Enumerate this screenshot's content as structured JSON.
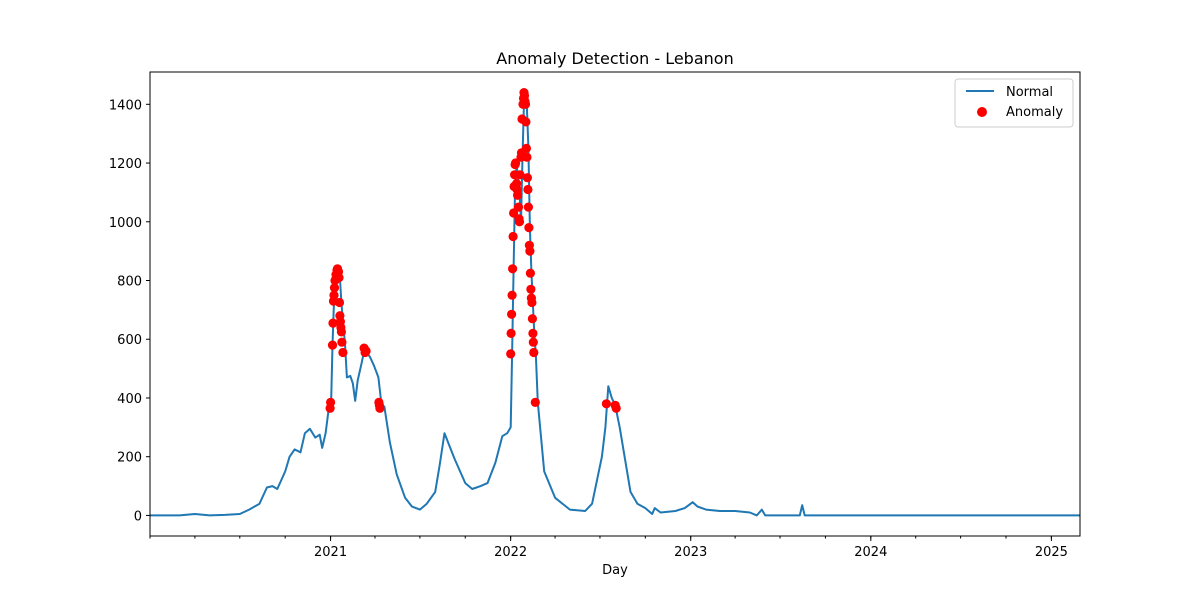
{
  "chart_data": {
    "type": "line",
    "title": "Anomaly Detection - Lebanon",
    "xlabel": "Day",
    "ylabel": "",
    "xlim": [
      "2020-01-01",
      "2025-02-28"
    ],
    "ylim": [
      -70,
      1510
    ],
    "x_ticks": [
      "2021",
      "2022",
      "2023",
      "2024",
      "2025"
    ],
    "y_ticks": [
      0,
      200,
      400,
      600,
      800,
      1000,
      1200,
      1400
    ],
    "legend": {
      "placement": "top-right",
      "entries": [
        "Normal",
        "Anomaly"
      ]
    },
    "grid": false,
    "colors": {
      "normal": "#1f77b4",
      "anomaly": "#ff0000"
    },
    "series": [
      {
        "name": "Normal",
        "type": "line",
        "points": [
          [
            "2020-01-01",
            0
          ],
          [
            "2020-03-01",
            0
          ],
          [
            "2020-04-01",
            5
          ],
          [
            "2020-05-01",
            0
          ],
          [
            "2020-06-01",
            2
          ],
          [
            "2020-07-01",
            5
          ],
          [
            "2020-07-20",
            20
          ],
          [
            "2020-08-10",
            40
          ],
          [
            "2020-08-25",
            95
          ],
          [
            "2020-09-05",
            100
          ],
          [
            "2020-09-15",
            90
          ],
          [
            "2020-10-01",
            150
          ],
          [
            "2020-10-10",
            200
          ],
          [
            "2020-10-20",
            225
          ],
          [
            "2020-11-01",
            215
          ],
          [
            "2020-11-10",
            280
          ],
          [
            "2020-11-20",
            295
          ],
          [
            "2020-12-01",
            265
          ],
          [
            "2020-12-10",
            275
          ],
          [
            "2020-12-15",
            230
          ],
          [
            "2020-12-22",
            280
          ],
          [
            "2020-12-28",
            360
          ],
          [
            "2021-01-02",
            380
          ],
          [
            "2021-01-05",
            580
          ],
          [
            "2021-01-08",
            730
          ],
          [
            "2021-01-12",
            790
          ],
          [
            "2021-01-16",
            835
          ],
          [
            "2021-01-20",
            810
          ],
          [
            "2021-01-23",
            725
          ],
          [
            "2021-01-26",
            660
          ],
          [
            "2021-01-30",
            590
          ],
          [
            "2021-02-03",
            470
          ],
          [
            "2021-02-10",
            475
          ],
          [
            "2021-02-15",
            450
          ],
          [
            "2021-02-20",
            390
          ],
          [
            "2021-02-25",
            460
          ],
          [
            "2021-03-05",
            520
          ],
          [
            "2021-03-10",
            560
          ],
          [
            "2021-03-15",
            555
          ],
          [
            "2021-03-22",
            540
          ],
          [
            "2021-03-30",
            510
          ],
          [
            "2021-04-08",
            470
          ],
          [
            "2021-04-14",
            380
          ],
          [
            "2021-04-20",
            370
          ],
          [
            "2021-05-01",
            250
          ],
          [
            "2021-05-15",
            140
          ],
          [
            "2021-06-01",
            60
          ],
          [
            "2021-06-15",
            30
          ],
          [
            "2021-07-01",
            20
          ],
          [
            "2021-07-15",
            40
          ],
          [
            "2021-08-01",
            80
          ],
          [
            "2021-08-10",
            170
          ],
          [
            "2021-08-20",
            280
          ],
          [
            "2021-08-28",
            245
          ],
          [
            "2021-09-10",
            190
          ],
          [
            "2021-10-01",
            110
          ],
          [
            "2021-10-15",
            90
          ],
          [
            "2021-11-01",
            100
          ],
          [
            "2021-11-15",
            110
          ],
          [
            "2021-12-01",
            180
          ],
          [
            "2021-12-15",
            270
          ],
          [
            "2021-12-25",
            280
          ],
          [
            "2022-01-01",
            300
          ],
          [
            "2022-01-04",
            550
          ],
          [
            "2022-01-07",
            840
          ],
          [
            "2022-01-10",
            1120
          ],
          [
            "2022-01-13",
            1195
          ],
          [
            "2022-01-16",
            1150
          ],
          [
            "2022-01-19",
            1100
          ],
          [
            "2022-01-22",
            1000
          ],
          [
            "2022-01-25",
            1220
          ],
          [
            "2022-01-28",
            1410
          ],
          [
            "2022-01-31",
            1435
          ],
          [
            "2022-02-03",
            1390
          ],
          [
            "2022-02-06",
            1250
          ],
          [
            "2022-02-09",
            980
          ],
          [
            "2022-02-12",
            830
          ],
          [
            "2022-02-15",
            720
          ],
          [
            "2022-02-18",
            620
          ],
          [
            "2022-02-21",
            550
          ],
          [
            "2022-02-25",
            385
          ],
          [
            "2022-03-10",
            150
          ],
          [
            "2022-04-01",
            60
          ],
          [
            "2022-05-01",
            20
          ],
          [
            "2022-06-01",
            15
          ],
          [
            "2022-06-15",
            40
          ],
          [
            "2022-06-25",
            120
          ],
          [
            "2022-07-05",
            200
          ],
          [
            "2022-07-12",
            300
          ],
          [
            "2022-07-18",
            440
          ],
          [
            "2022-07-25",
            400
          ],
          [
            "2022-08-01",
            375
          ],
          [
            "2022-08-10",
            300
          ],
          [
            "2022-08-20",
            200
          ],
          [
            "2022-09-01",
            80
          ],
          [
            "2022-09-15",
            40
          ],
          [
            "2022-10-01",
            25
          ],
          [
            "2022-10-15",
            5
          ],
          [
            "2022-10-20",
            25
          ],
          [
            "2022-11-01",
            10
          ],
          [
            "2022-12-01",
            15
          ],
          [
            "2022-12-20",
            25
          ],
          [
            "2023-01-05",
            45
          ],
          [
            "2023-01-15",
            30
          ],
          [
            "2023-02-01",
            20
          ],
          [
            "2023-03-01",
            15
          ],
          [
            "2023-04-01",
            15
          ],
          [
            "2023-05-01",
            10
          ],
          [
            "2023-05-15",
            0
          ],
          [
            "2023-05-25",
            20
          ],
          [
            "2023-06-01",
            0
          ],
          [
            "2023-08-10",
            0
          ],
          [
            "2023-08-15",
            35
          ],
          [
            "2023-08-20",
            0
          ],
          [
            "2025-02-28",
            0
          ]
        ]
      },
      {
        "name": "Anomaly",
        "type": "scatter",
        "points": [
          [
            "2020-12-31",
            365
          ],
          [
            "2021-01-01",
            385
          ],
          [
            "2021-01-05",
            580
          ],
          [
            "2021-01-06",
            655
          ],
          [
            "2021-01-07",
            730
          ],
          [
            "2021-01-08",
            750
          ],
          [
            "2021-01-09",
            775
          ],
          [
            "2021-01-10",
            800
          ],
          [
            "2021-01-12",
            820
          ],
          [
            "2021-01-14",
            835
          ],
          [
            "2021-01-15",
            840
          ],
          [
            "2021-01-17",
            830
          ],
          [
            "2021-01-18",
            810
          ],
          [
            "2021-01-19",
            725
          ],
          [
            "2021-01-20",
            680
          ],
          [
            "2021-01-21",
            660
          ],
          [
            "2021-01-22",
            640
          ],
          [
            "2021-01-23",
            625
          ],
          [
            "2021-01-24",
            590
          ],
          [
            "2021-01-26",
            555
          ],
          [
            "2021-03-10",
            570
          ],
          [
            "2021-03-12",
            555
          ],
          [
            "2021-03-14",
            560
          ],
          [
            "2021-04-09",
            385
          ],
          [
            "2021-04-10",
            375
          ],
          [
            "2021-04-11",
            365
          ],
          [
            "2022-01-01",
            550
          ],
          [
            "2022-01-02",
            620
          ],
          [
            "2022-01-03",
            685
          ],
          [
            "2022-01-04",
            750
          ],
          [
            "2022-01-05",
            840
          ],
          [
            "2022-01-06",
            950
          ],
          [
            "2022-01-07",
            1030
          ],
          [
            "2022-01-08",
            1120
          ],
          [
            "2022-01-09",
            1160
          ],
          [
            "2022-01-10",
            1195
          ],
          [
            "2022-01-11",
            1200
          ],
          [
            "2022-01-13",
            1130
          ],
          [
            "2022-01-14",
            1110
          ],
          [
            "2022-01-15",
            1090
          ],
          [
            "2022-01-17",
            1050
          ],
          [
            "2022-01-18",
            1010
          ],
          [
            "2022-01-19",
            1000
          ],
          [
            "2022-01-20",
            1160
          ],
          [
            "2022-01-22",
            1220
          ],
          [
            "2022-01-23",
            1235
          ],
          [
            "2022-01-24",
            1350
          ],
          [
            "2022-01-26",
            1400
          ],
          [
            "2022-01-27",
            1420
          ],
          [
            "2022-01-28",
            1440
          ],
          [
            "2022-01-29",
            1430
          ],
          [
            "2022-01-30",
            1410
          ],
          [
            "2022-01-31",
            1400
          ],
          [
            "2022-02-01",
            1340
          ],
          [
            "2022-02-02",
            1250
          ],
          [
            "2022-02-03",
            1220
          ],
          [
            "2022-02-04",
            1150
          ],
          [
            "2022-02-05",
            1110
          ],
          [
            "2022-02-06",
            1050
          ],
          [
            "2022-02-07",
            980
          ],
          [
            "2022-02-08",
            920
          ],
          [
            "2022-02-09",
            900
          ],
          [
            "2022-02-10",
            825
          ],
          [
            "2022-02-11",
            770
          ],
          [
            "2022-02-12",
            740
          ],
          [
            "2022-02-13",
            725
          ],
          [
            "2022-02-14",
            670
          ],
          [
            "2022-02-15",
            620
          ],
          [
            "2022-02-16",
            590
          ],
          [
            "2022-02-17",
            555
          ],
          [
            "2022-02-20",
            385
          ],
          [
            "2022-07-14",
            380
          ],
          [
            "2022-08-01",
            375
          ],
          [
            "2022-08-03",
            365
          ]
        ]
      }
    ]
  }
}
